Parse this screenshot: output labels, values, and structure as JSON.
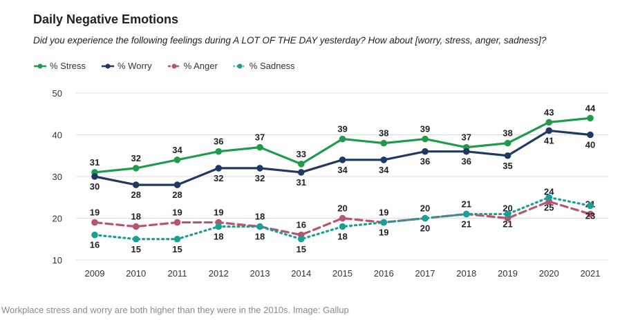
{
  "title": "Daily Negative Emotions",
  "subtitle": "Did you experience the following feelings during A LOT OF THE DAY yesterday? How about [worry, stress, anger, sadness]?",
  "caption": "Workplace stress and worry are both higher than they were in the 2010s. Image: Gallup",
  "chart_data": {
    "type": "line",
    "title": "Daily Negative Emotions",
    "xlabel": "",
    "ylabel": "",
    "x": [
      "2009",
      "2010",
      "2011",
      "2012",
      "2013",
      "2014",
      "2015",
      "2016",
      "2017",
      "2018",
      "2019",
      "2020",
      "2021"
    ],
    "ylim": [
      10,
      50
    ],
    "yticks": [
      10,
      20,
      30,
      40,
      50
    ],
    "grid": "horizontal",
    "legend_position": "top-left",
    "series": [
      {
        "name": "% Stress",
        "color": "#1e9b4b",
        "style": "solid",
        "label_pos": "above",
        "values": [
          31,
          32,
          34,
          36,
          37,
          33,
          39,
          38,
          39,
          37,
          38,
          43,
          44
        ]
      },
      {
        "name": "% Worry",
        "color": "#1f3864",
        "style": "solid",
        "label_pos": "below",
        "values": [
          30,
          28,
          28,
          32,
          32,
          31,
          34,
          34,
          36,
          36,
          35,
          41,
          40
        ]
      },
      {
        "name": "% Anger",
        "color": "#b5556e",
        "style": "dashed",
        "label_pos": "above",
        "values": [
          19,
          18,
          19,
          19,
          18,
          16,
          20,
          19,
          20,
          21,
          20,
          24,
          21
        ]
      },
      {
        "name": "% Sadness",
        "color": "#1a9e96",
        "style": "dotted",
        "label_pos": "below",
        "values": [
          16,
          15,
          15,
          18,
          18,
          15,
          18,
          19,
          20,
          21,
          21,
          25,
          23
        ]
      }
    ]
  }
}
